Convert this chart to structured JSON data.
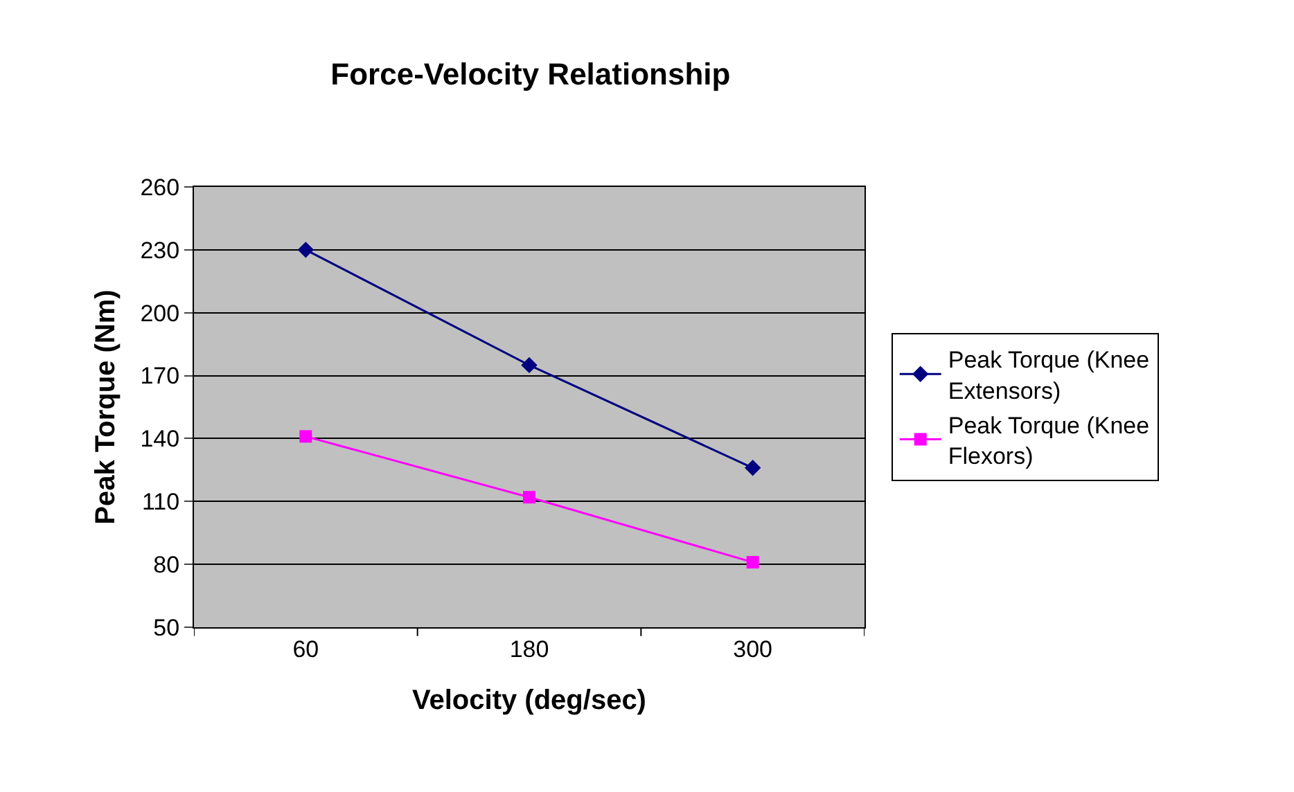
{
  "chart_data": {
    "type": "line",
    "title": "Force-Velocity Relationship",
    "xlabel": "Velocity (deg/sec)",
    "ylabel": "Peak Torque (Nm)",
    "categories": [
      "60",
      "180",
      "300"
    ],
    "series": [
      {
        "name": "Peak Torque (Knee Extensors)",
        "color": "#000080",
        "marker": "diamond",
        "values": [
          230,
          175,
          126
        ]
      },
      {
        "name": "Peak Torque (Knee Flexors)",
        "color": "#ff00ff",
        "marker": "square",
        "values": [
          141,
          112,
          81
        ]
      }
    ],
    "ylim": [
      50,
      260
    ],
    "yticks": [
      50,
      80,
      110,
      140,
      170,
      200,
      230,
      260
    ],
    "grid": "y",
    "legend": "right",
    "line_style": "solid"
  }
}
